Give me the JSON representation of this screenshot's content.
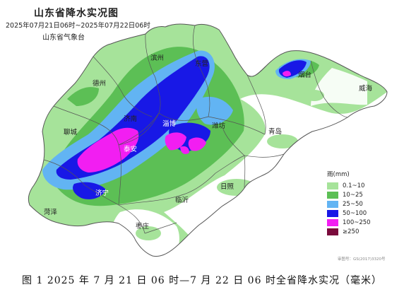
{
  "map": {
    "title": "山东省降水实况图",
    "period": "2025年07月21日06时~2025年07月22日06时",
    "agency": "山东省气象台",
    "approval_number": "审图号：GS(2017)3320号"
  },
  "cities": [
    {
      "name": "滨州",
      "tone": "dark"
    },
    {
      "name": "东营",
      "tone": "dark"
    },
    {
      "name": "德州",
      "tone": "dark"
    },
    {
      "name": "烟台",
      "tone": "dark"
    },
    {
      "name": "威海",
      "tone": "dark"
    },
    {
      "name": "济南",
      "tone": "dark"
    },
    {
      "name": "淄博",
      "tone": "light"
    },
    {
      "name": "潍坊",
      "tone": "dark"
    },
    {
      "name": "聊城",
      "tone": "dark"
    },
    {
      "name": "青岛",
      "tone": "dark"
    },
    {
      "name": "泰安",
      "tone": "light"
    },
    {
      "name": "日照",
      "tone": "dark"
    },
    {
      "name": "济宁",
      "tone": "light"
    },
    {
      "name": "临沂",
      "tone": "dark"
    },
    {
      "name": "菏泽",
      "tone": "dark"
    },
    {
      "name": "枣庄",
      "tone": "dark"
    }
  ],
  "legend": {
    "title": "雨(mm)",
    "items": [
      {
        "label": "0.1~10",
        "color": "#a6e39a"
      },
      {
        "label": "10~25",
        "color": "#5cbf55"
      },
      {
        "label": "25~50",
        "color": "#62b4f3"
      },
      {
        "label": "50~100",
        "color": "#1818e6"
      },
      {
        "label": "100~250",
        "color": "#f21ef2"
      },
      {
        "label": "≥250",
        "color": "#7a0b3c"
      }
    ]
  },
  "caption": "图 1  2025 年 7 月 21 日 06 时—7 月 22 日 06 时全省降水实况（毫米）"
}
